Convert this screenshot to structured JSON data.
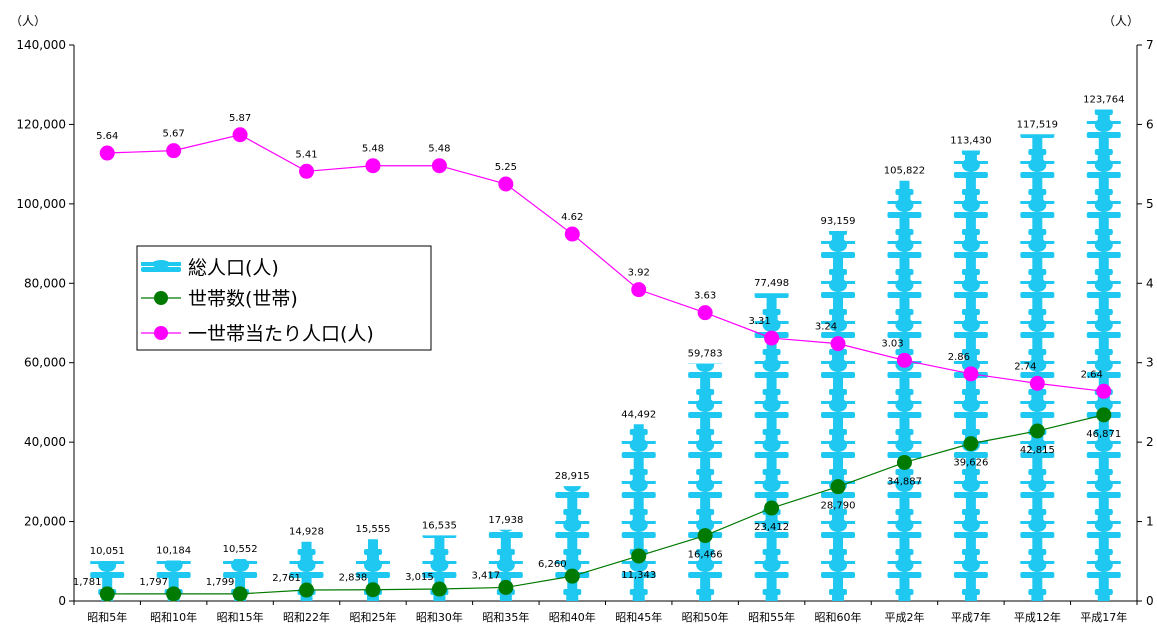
{
  "chart_data": {
    "type": "bar",
    "left_unit": "（人）",
    "right_unit": "（人）",
    "categories": [
      "昭和5年",
      "昭和10年",
      "昭和15年",
      "昭和22年",
      "昭和25年",
      "昭和30年",
      "昭和35年",
      "昭和40年",
      "昭和45年",
      "昭和50年",
      "昭和55年",
      "昭和60年",
      "平成2年",
      "平成7年",
      "平成12年",
      "平成17年"
    ],
    "y_left": {
      "lim": [
        0,
        140000
      ],
      "ticks": [
        "0",
        "20,000",
        "40,000",
        "60,000",
        "80,000",
        "100,000",
        "120,000",
        "140,000"
      ]
    },
    "y_right": {
      "lim": [
        0,
        7
      ],
      "ticks": [
        "0",
        "1",
        "2",
        "3",
        "4",
        "5",
        "6",
        "7"
      ]
    },
    "series": [
      {
        "name": "総人口(人)",
        "kind": "pictogram-bar",
        "axis": "left",
        "color": "#1EC8F0",
        "values": [
          10051,
          10184,
          10552,
          14928,
          15555,
          16535,
          17938,
          28915,
          44492,
          59783,
          77498,
          93159,
          105822,
          113430,
          117519,
          123764
        ],
        "labels": [
          "10,051",
          "10,184",
          "10,552",
          "14,928",
          "15,555",
          "16,535",
          "17,938",
          "28,915",
          "44,492",
          "59,783",
          "77,498",
          "93,159",
          "105,822",
          "113,430",
          "117,519",
          "123,764"
        ]
      },
      {
        "name": "世帯数(世帯)",
        "kind": "line",
        "axis": "left",
        "color": "#007A00",
        "values": [
          1781,
          1797,
          1799,
          2761,
          2838,
          3015,
          3417,
          6260,
          11343,
          16466,
          23412,
          28790,
          34887,
          39626,
          42815,
          46871
        ],
        "labels": [
          "1,781",
          "1,797",
          "1,799",
          "2,761",
          "2,838",
          "3,015",
          "3,417",
          "6,260",
          "11,343",
          "16,466",
          "23,412",
          "28,790",
          "34,887",
          "39,626",
          "42,815",
          "46,871"
        ]
      },
      {
        "name": "一世帯当たり人口(人)",
        "kind": "line",
        "axis": "right",
        "color": "#FF00FF",
        "values": [
          5.64,
          5.67,
          5.87,
          5.41,
          5.48,
          5.48,
          5.25,
          4.62,
          3.92,
          3.63,
          3.31,
          3.24,
          3.03,
          2.86,
          2.74,
          2.64
        ],
        "labels": [
          "5.64",
          "5.67",
          "5.87",
          "5.41",
          "5.48",
          "5.48",
          "5.25",
          "4.62",
          "3.92",
          "3.63",
          "3.31",
          "3.24",
          "3.03",
          "2.86",
          "2.74",
          "2.64"
        ]
      }
    ],
    "legend": {
      "position": "left-middle",
      "items": [
        "総人口(人)",
        "世帯数(世帯)",
        "一世帯当たり人口(人)"
      ]
    },
    "grid": false
  }
}
